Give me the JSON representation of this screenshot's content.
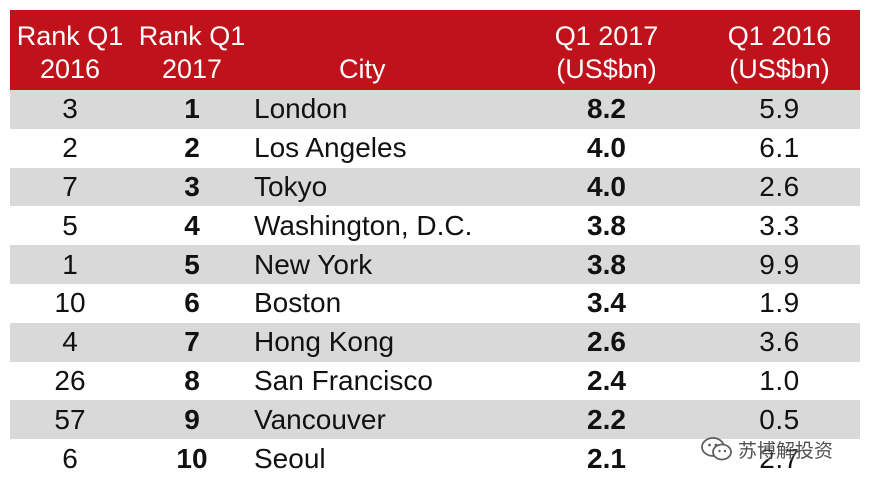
{
  "chart_data": {
    "type": "table",
    "columns": [
      {
        "key": "rank_2016",
        "label_lines": [
          "Rank Q1",
          "2016"
        ]
      },
      {
        "key": "rank_2017",
        "label_lines": [
          "Rank Q1",
          "2017"
        ]
      },
      {
        "key": "city",
        "label_lines": [
          "City"
        ]
      },
      {
        "key": "q1_2017",
        "label_lines": [
          "Q1 2017",
          "(US$bn)"
        ]
      },
      {
        "key": "q1_2016",
        "label_lines": [
          "Q1 2016",
          "(US$bn)"
        ]
      }
    ],
    "rows": [
      {
        "rank_2016": "3",
        "rank_2017": "1",
        "city": "London",
        "q1_2017": "8.2",
        "q1_2016": "5.9"
      },
      {
        "rank_2016": "2",
        "rank_2017": "2",
        "city": "Los Angeles",
        "q1_2017": "4.0",
        "q1_2016": "6.1"
      },
      {
        "rank_2016": "7",
        "rank_2017": "3",
        "city": "Tokyo",
        "q1_2017": "4.0",
        "q1_2016": "2.6"
      },
      {
        "rank_2016": "5",
        "rank_2017": "4",
        "city": "Washington, D.C.",
        "q1_2017": "3.8",
        "q1_2016": "3.3"
      },
      {
        "rank_2016": "1",
        "rank_2017": "5",
        "city": "New York",
        "q1_2017": "3.8",
        "q1_2016": "9.9"
      },
      {
        "rank_2016": "10",
        "rank_2017": "6",
        "city": "Boston",
        "q1_2017": "3.4",
        "q1_2016": "1.9"
      },
      {
        "rank_2016": "4",
        "rank_2017": "7",
        "city": "Hong Kong",
        "q1_2017": "2.6",
        "q1_2016": "3.6"
      },
      {
        "rank_2016": "26",
        "rank_2017": "8",
        "city": "San Francisco",
        "q1_2017": "2.4",
        "q1_2016": "1.0"
      },
      {
        "rank_2016": "57",
        "rank_2017": "9",
        "city": "Vancouver",
        "q1_2017": "2.2",
        "q1_2016": "0.5"
      },
      {
        "rank_2016": "6",
        "rank_2017": "10",
        "city": "Seoul",
        "q1_2017": "2.1",
        "q1_2016": "2.7"
      }
    ],
    "header_color": "#c0121b",
    "stripe_color": "#d9d9d9",
    "bold_columns": [
      "rank_2017",
      "q1_2017"
    ]
  },
  "watermark": {
    "text": "苏博解投资",
    "icon": "wechat-icon"
  }
}
